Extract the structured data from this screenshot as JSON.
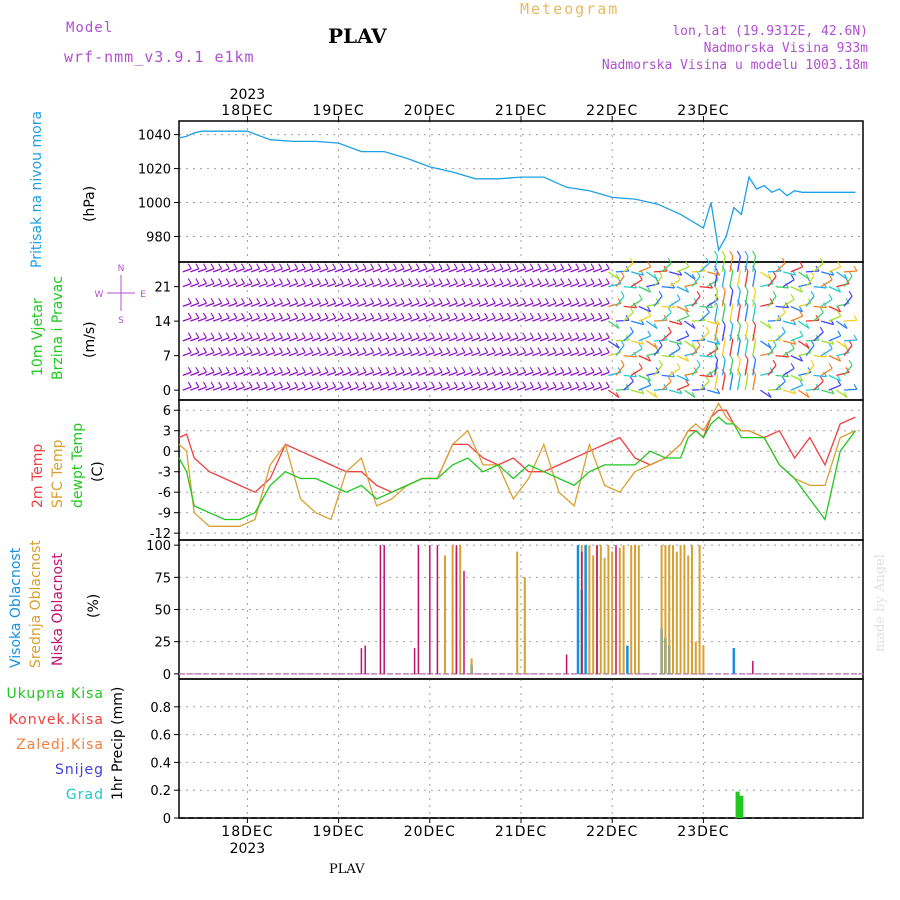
{
  "header": {
    "model_label": "Model",
    "model_name": "wrf-nmm_v3.9.1 e1km",
    "station": "PLAV",
    "title": "Meteogram",
    "lonlat": "lon,lat (19.9312E, 42.6N)",
    "elevation": "Nadmorska Visina 933m",
    "model_elevation": "Nadmorska Visina u modelu 1003.18m"
  },
  "footer": {
    "station": "PLAV",
    "credit": "made by Angel"
  },
  "colors": {
    "pressure": "#1ea0e6",
    "temp2m": "#f04040",
    "sfc": "#d8a030",
    "dewpt": "#20c820",
    "wind": "#9010c8",
    "high_cloud": "#1890e0",
    "mid_cloud": "#d8a030",
    "low_cloud": "#c01070",
    "total_precip": "#20c820"
  },
  "chart_data": [
    {
      "type": "line",
      "id": "pressure",
      "ylabel_side": "Pritisak na nivou mora",
      "unit": "(hPa)",
      "year_top": "2023",
      "x_top_labels": [
        "18DEC",
        "19DEC",
        "20DEC",
        "21DEC",
        "22DEC",
        "23DEC"
      ],
      "ylim": [
        965,
        1048
      ],
      "yticks": [
        980,
        1000,
        1020,
        1040
      ],
      "x": [
        0,
        2,
        4,
        6,
        8,
        12,
        18,
        24,
        30,
        36,
        42,
        48,
        54,
        60,
        66,
        72,
        78,
        84,
        90,
        96,
        102,
        108,
        114,
        120,
        126,
        132,
        138,
        140,
        142,
        144,
        146,
        148,
        150,
        152,
        154,
        156,
        158,
        160,
        162,
        164,
        166,
        168,
        170,
        172,
        174,
        176,
        178
      ],
      "series": [
        {
          "values": [
            1038,
            1039,
            1041,
            1042,
            1042,
            1042,
            1042,
            1037,
            1036,
            1036,
            1035,
            1030,
            1030,
            1026,
            1021,
            1018,
            1014,
            1014,
            1015,
            1015,
            1009,
            1007,
            1003,
            1002,
            999,
            993,
            985,
            1000,
            972,
            980,
            997,
            993,
            1015,
            1008,
            1010,
            1006,
            1008,
            1004,
            1007,
            1006,
            1006,
            1006,
            1006,
            1006,
            1006,
            1006,
            1006
          ]
        }
      ],
      "grid": true
    },
    {
      "type": "wind-barbs",
      "id": "wind",
      "ylabel_side": [
        "10m Vjetar",
        "Brzina i Pravac"
      ],
      "unit": "(m/s)",
      "compass": [
        "N",
        "W",
        "E",
        "S"
      ],
      "ylim": [
        -2,
        26
      ],
      "yticks": [
        0,
        7,
        14,
        21
      ],
      "levels": [
        0,
        3,
        7,
        10,
        14,
        17,
        21,
        24
      ]
    },
    {
      "type": "line",
      "id": "temperature",
      "ylabel_side": [
        "2m Temp",
        "SFC Temp",
        "dewpt Temp"
      ],
      "unit": "(C)",
      "ylim": [
        -13,
        7.5
      ],
      "yticks": [
        -12,
        -9,
        -6,
        -3,
        0,
        3,
        6
      ],
      "x": [
        0,
        2,
        4,
        8,
        12,
        16,
        20,
        24,
        28,
        32,
        36,
        40,
        44,
        48,
        52,
        56,
        60,
        64,
        68,
        72,
        76,
        80,
        84,
        88,
        92,
        96,
        100,
        104,
        108,
        112,
        116,
        120,
        124,
        128,
        132,
        134,
        136,
        138,
        140,
        142,
        144,
        146,
        148,
        150,
        154,
        158,
        162,
        166,
        170,
        174,
        178
      ],
      "series": [
        {
          "name": "2m Temp",
          "values": [
            2,
            2.5,
            -1,
            -3,
            -4,
            -5,
            -6,
            -4,
            1,
            0,
            -1,
            -2,
            -3,
            -3,
            -5,
            -6,
            -5,
            -4,
            -4,
            1,
            1,
            -1,
            -2,
            -1,
            -3,
            -3,
            -2,
            -1,
            0,
            1,
            2,
            -1,
            -2,
            -1,
            1,
            3,
            3,
            2,
            5,
            6,
            6,
            4,
            3,
            3,
            2,
            3,
            -1,
            2,
            -2,
            4,
            5
          ]
        },
        {
          "name": "SFC Temp",
          "values": [
            1,
            0,
            -9,
            -11,
            -11,
            -11,
            -10,
            -2,
            1,
            -7,
            -9,
            -10,
            -3,
            -1,
            -8,
            -7,
            -5,
            -4,
            -4,
            1,
            3,
            -2,
            -2,
            -7,
            -4,
            1,
            -6,
            -8,
            1,
            -5,
            -6,
            -3,
            -2,
            -1,
            1,
            3,
            4,
            3,
            5,
            7,
            5,
            4,
            3,
            3,
            2,
            -2,
            -4,
            -5,
            -5,
            2,
            3
          ]
        },
        {
          "name": "dewpt Temp",
          "values": [
            -1,
            -3,
            -8,
            -9,
            -10,
            -10,
            -9,
            -5,
            -3,
            -4,
            -4,
            -5,
            -6,
            -5,
            -7,
            -6,
            -5,
            -4,
            -4,
            -2,
            -1,
            -3,
            -2,
            -4,
            -2,
            -3,
            -4,
            -5,
            -3,
            -2,
            -2,
            -2,
            0,
            -1,
            -1,
            2,
            3,
            2,
            4,
            5,
            4,
            4,
            2,
            2,
            2,
            -2,
            -4,
            -7,
            -10,
            0,
            3
          ]
        }
      ],
      "grid": true
    },
    {
      "type": "bar",
      "id": "clouds",
      "ylabel_side": [
        "Visoka Oblacnost",
        "Srednja Oblacnost",
        "Niska Oblacnost"
      ],
      "unit": "(%)",
      "ylim": [
        -4,
        104
      ],
      "yticks": [
        0,
        25,
        50,
        75,
        100
      ],
      "series": [
        {
          "name": "Visoka Oblacnost",
          "x": [
            77,
            105,
            106,
            107,
            118,
            127,
            128,
            129,
            146
          ],
          "values": [
            7,
            100,
            65,
            100,
            22,
            35,
            28,
            22,
            20
          ]
        },
        {
          "name": "Srednja Oblacnost",
          "x": [
            70,
            72,
            73,
            74,
            77,
            89,
            91,
            106,
            108,
            109,
            110,
            111,
            112,
            113,
            114,
            116,
            117,
            119,
            120,
            121,
            127,
            128,
            129,
            130,
            131,
            132,
            133,
            134,
            135,
            136,
            137,
            138
          ],
          "values": [
            92,
            100,
            95,
            100,
            12,
            95,
            75,
            100,
            100,
            92,
            100,
            100,
            90,
            100,
            95,
            98,
            100,
            100,
            100,
            100,
            100,
            100,
            100,
            100,
            95,
            100,
            100,
            92,
            100,
            25,
            100,
            22
          ]
        },
        {
          "name": "Niska Oblacnost",
          "x": [
            48,
            49,
            53,
            54,
            62,
            63,
            66,
            68,
            73,
            75,
            102,
            106,
            110,
            115,
            151
          ],
          "values": [
            20,
            22,
            100,
            100,
            20,
            100,
            100,
            100,
            100,
            80,
            15,
            95,
            100,
            100,
            10
          ]
        }
      ]
    },
    {
      "type": "bar",
      "id": "precip",
      "ylabel_side": [
        "Ukupna Kisa",
        "Konvek.Kisa",
        "Zaledj.Kisa",
        "Snijeg",
        "Grad"
      ],
      "unit": "1hr Precip (mm)",
      "year_bottom": "2023",
      "x_bottom_labels": [
        "18DEC",
        "19DEC",
        "20DEC",
        "21DEC",
        "22DEC",
        "23DEC"
      ],
      "ylim": [
        0,
        1
      ],
      "yticks": [
        0,
        0.2,
        0.4,
        0.6,
        0.8
      ],
      "series": [
        {
          "name": "Ukupna Kisa",
          "x": [
            147,
            148
          ],
          "values": [
            0.19,
            0.16
          ]
        }
      ]
    }
  ]
}
